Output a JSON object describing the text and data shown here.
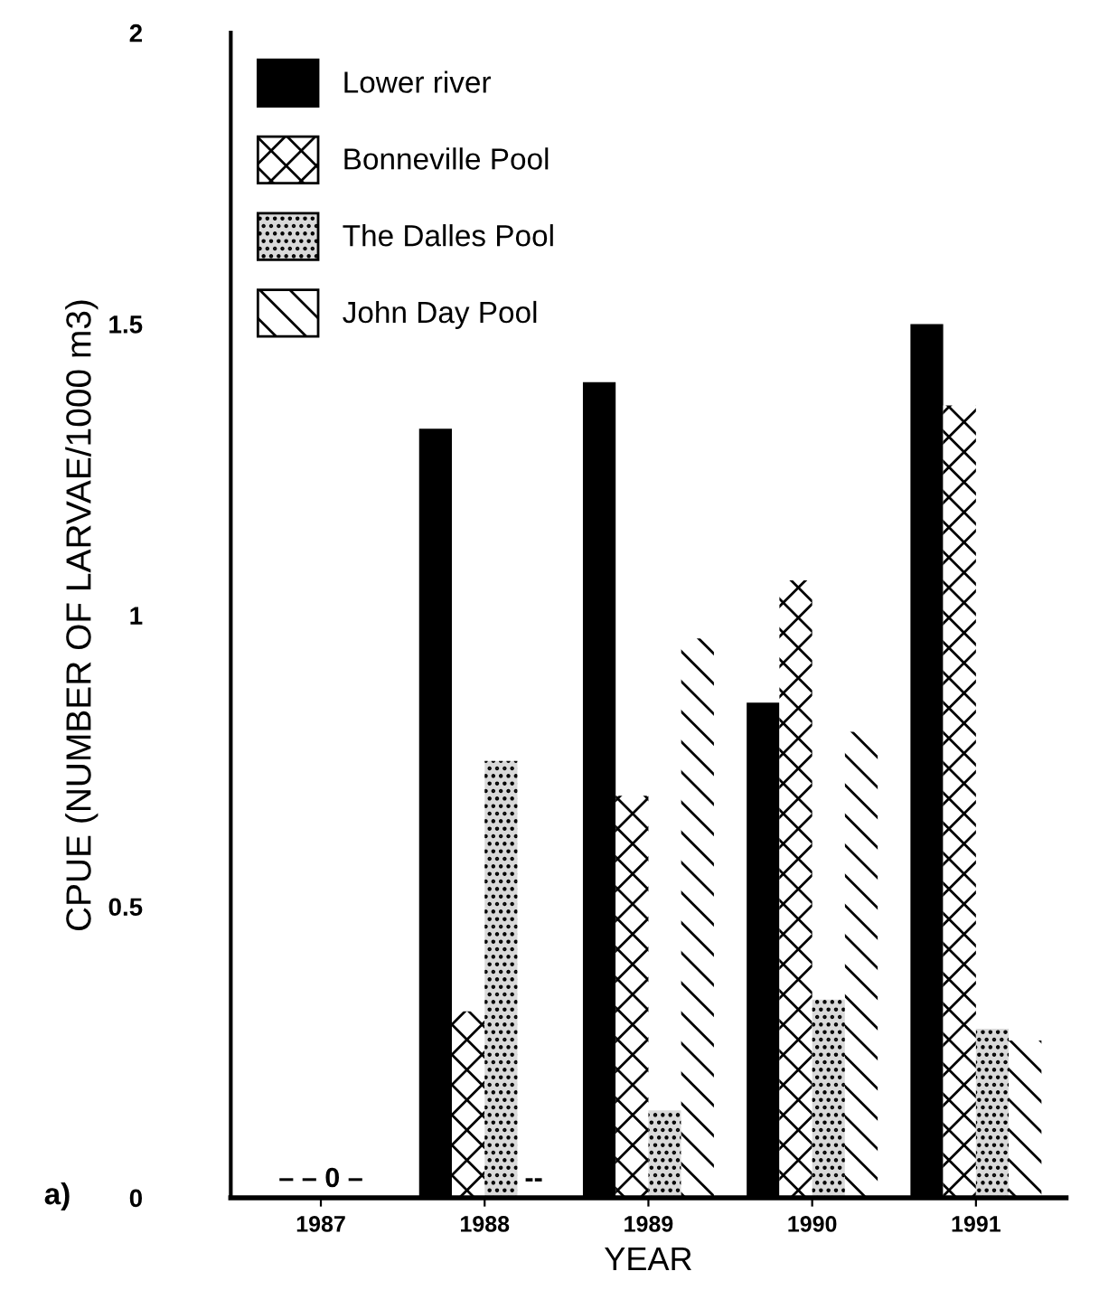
{
  "chart_data": {
    "type": "bar",
    "xlabel": "YEAR",
    "ylabel": "CPUE (NUMBER OF LARVAE/1000 m3)",
    "categories": [
      "1987",
      "1988",
      "1989",
      "1990",
      "1991"
    ],
    "series": [
      {
        "name": "Lower river",
        "color": "#000000",
        "values": [
          0,
          1.32,
          1.4,
          0.85,
          1.5
        ]
      },
      {
        "name": "Bonneville Pool",
        "color": "#ffffff",
        "values": [
          0,
          0.32,
          0.69,
          1.06,
          1.36
        ]
      },
      {
        "name": "The Dalles Pool",
        "color": "#d9d9d9",
        "values": [
          0,
          0.75,
          0.15,
          0.34,
          0.29
        ]
      },
      {
        "name": "John Day Pool",
        "color": "#ffffff",
        "values": [
          0,
          0,
          0.96,
          0.8,
          0.27
        ]
      }
    ],
    "ylim": [
      0,
      2
    ],
    "yticks": [
      0,
      0.5,
      1,
      1.5,
      2
    ],
    "grid": false,
    "legend": "top left",
    "annotations": [
      {
        "text": "– – 0 –",
        "x": "1987",
        "y": 0
      },
      {
        "text": "--",
        "x": "1988",
        "y": 0
      },
      "a)"
    ]
  }
}
